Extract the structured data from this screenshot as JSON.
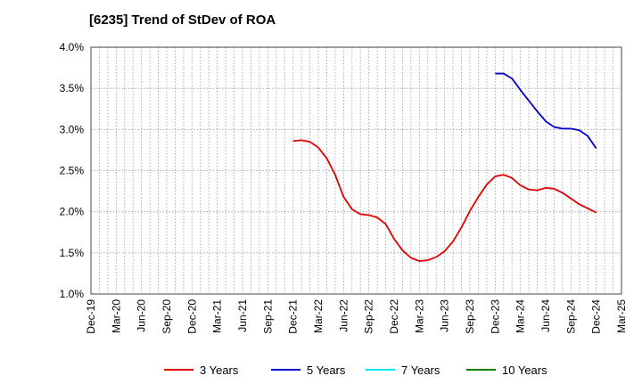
{
  "chart_data": {
    "type": "line",
    "title": "[6235]  Trend of StDev of ROA",
    "xlabel": "",
    "ylabel": "",
    "x_ticks": [
      "Dec-19",
      "Mar-20",
      "Jun-20",
      "Sep-20",
      "Dec-20",
      "Mar-21",
      "Jun-21",
      "Sep-21",
      "Dec-21",
      "Mar-22",
      "Jun-22",
      "Sep-22",
      "Dec-22",
      "Mar-23",
      "Jun-23",
      "Sep-23",
      "Dec-23",
      "Mar-24",
      "Jun-24",
      "Sep-24",
      "Dec-24",
      "Mar-25"
    ],
    "y_ticks": [
      "1.0%",
      "1.5%",
      "2.0%",
      "2.5%",
      "3.0%",
      "3.5%",
      "4.0%"
    ],
    "ylim": [
      1.0,
      4.0
    ],
    "grid": true,
    "legend_position": "bottom",
    "series": [
      {
        "name": "3 Years",
        "color": "#e00000",
        "points": [
          [
            "Dec-21",
            2.86
          ],
          [
            "Jan-22",
            2.87
          ],
          [
            "Feb-22",
            2.85
          ],
          [
            "Mar-22",
            2.78
          ],
          [
            "Apr-22",
            2.65
          ],
          [
            "May-22",
            2.45
          ],
          [
            "Jun-22",
            2.18
          ],
          [
            "Jul-22",
            2.03
          ],
          [
            "Aug-22",
            1.97
          ],
          [
            "Sep-22",
            1.96
          ],
          [
            "Oct-22",
            1.93
          ],
          [
            "Nov-22",
            1.85
          ],
          [
            "Dec-22",
            1.67
          ],
          [
            "Jan-23",
            1.53
          ],
          [
            "Feb-23",
            1.44
          ],
          [
            "Mar-23",
            1.4
          ],
          [
            "Apr-23",
            1.41
          ],
          [
            "May-23",
            1.45
          ],
          [
            "Jun-23",
            1.52
          ],
          [
            "Jul-23",
            1.64
          ],
          [
            "Aug-23",
            1.81
          ],
          [
            "Sep-23",
            2.01
          ],
          [
            "Oct-23",
            2.18
          ],
          [
            "Nov-23",
            2.33
          ],
          [
            "Dec-23",
            2.43
          ],
          [
            "Jan-24",
            2.45
          ],
          [
            "Feb-24",
            2.41
          ],
          [
            "Mar-24",
            2.32
          ],
          [
            "Apr-24",
            2.27
          ],
          [
            "May-24",
            2.26
          ],
          [
            "Jun-24",
            2.29
          ],
          [
            "Jul-24",
            2.28
          ],
          [
            "Aug-24",
            2.23
          ],
          [
            "Sep-24",
            2.16
          ],
          [
            "Oct-24",
            2.09
          ],
          [
            "Nov-24",
            2.04
          ],
          [
            "Dec-24",
            1.99
          ]
        ]
      },
      {
        "name": "5 Years",
        "color": "#0000cc",
        "points": [
          [
            "Dec-23",
            3.68
          ],
          [
            "Jan-24",
            3.68
          ],
          [
            "Feb-24",
            3.62
          ],
          [
            "Mar-24",
            3.48
          ],
          [
            "Apr-24",
            3.35
          ],
          [
            "May-24",
            3.22
          ],
          [
            "Jun-24",
            3.1
          ],
          [
            "Jul-24",
            3.03
          ],
          [
            "Aug-24",
            3.01
          ],
          [
            "Sep-24",
            3.01
          ],
          [
            "Oct-24",
            2.99
          ],
          [
            "Nov-24",
            2.92
          ],
          [
            "Dec-24",
            2.77
          ]
        ]
      },
      {
        "name": "7 Years",
        "color": "#00e5ee",
        "points": []
      },
      {
        "name": "10 Years",
        "color": "#008000",
        "points": []
      }
    ]
  }
}
